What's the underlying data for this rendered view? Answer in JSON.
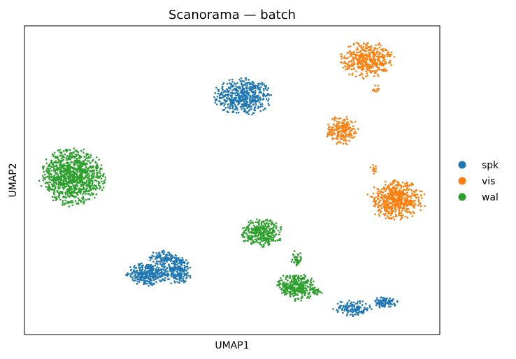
{
  "chart_data": {
    "type": "scatter",
    "title": "Scanorama — batch",
    "xlabel": "UMAP1",
    "ylabel": "UMAP2",
    "xlim": [
      0,
      100
    ],
    "ylim": [
      0,
      100
    ],
    "ticks_visible": false,
    "grid": false,
    "legend": {
      "position": "right",
      "entries": [
        "spk",
        "vis",
        "wal"
      ]
    },
    "series": [
      {
        "name": "spk",
        "color": "#1f77b4",
        "clusters": [
          {
            "cx": 52.5,
            "cy": 77,
            "rx": 6.5,
            "ry": 5.5,
            "n": 520
          },
          {
            "cx": 29.5,
            "cy": 19.5,
            "rx": 4.5,
            "ry": 3.5,
            "n": 300
          },
          {
            "cx": 36.5,
            "cy": 21,
            "rx": 3.8,
            "ry": 4.2,
            "n": 260
          },
          {
            "cx": 33.5,
            "cy": 25,
            "rx": 3.2,
            "ry": 2.2,
            "n": 90
          },
          {
            "cx": 79,
            "cy": 8.5,
            "rx": 4.2,
            "ry": 2.4,
            "n": 150
          },
          {
            "cx": 87,
            "cy": 10.5,
            "rx": 2.6,
            "ry": 1.8,
            "n": 100
          }
        ]
      },
      {
        "name": "vis",
        "color": "#ff7f0e",
        "clusters": [
          {
            "cx": 82.5,
            "cy": 89,
            "rx": 6,
            "ry": 5.5,
            "n": 420
          },
          {
            "cx": 76.5,
            "cy": 66,
            "rx": 3.6,
            "ry": 4.5,
            "n": 200
          },
          {
            "cx": 89.5,
            "cy": 43.5,
            "rx": 6.5,
            "ry": 5.8,
            "n": 560
          },
          {
            "cx": 84,
            "cy": 53.5,
            "rx": 1.2,
            "ry": 1.6,
            "n": 12
          },
          {
            "cx": 84.5,
            "cy": 79.5,
            "rx": 0.8,
            "ry": 1.4,
            "n": 10
          }
        ]
      },
      {
        "name": "wal",
        "color": "#2ca02c",
        "clusters": [
          {
            "cx": 11.5,
            "cy": 51,
            "rx": 7.2,
            "ry": 8.6,
            "n": 1050
          },
          {
            "cx": 57,
            "cy": 33,
            "rx": 4.8,
            "ry": 4.2,
            "n": 340
          },
          {
            "cx": 65.5,
            "cy": 15.5,
            "rx": 4.3,
            "ry": 4.3,
            "n": 330
          },
          {
            "cx": 65.5,
            "cy": 24.5,
            "rx": 1.3,
            "ry": 2.6,
            "n": 40
          },
          {
            "cx": 70.5,
            "cy": 14,
            "rx": 1.2,
            "ry": 1.0,
            "n": 20
          }
        ]
      }
    ]
  }
}
